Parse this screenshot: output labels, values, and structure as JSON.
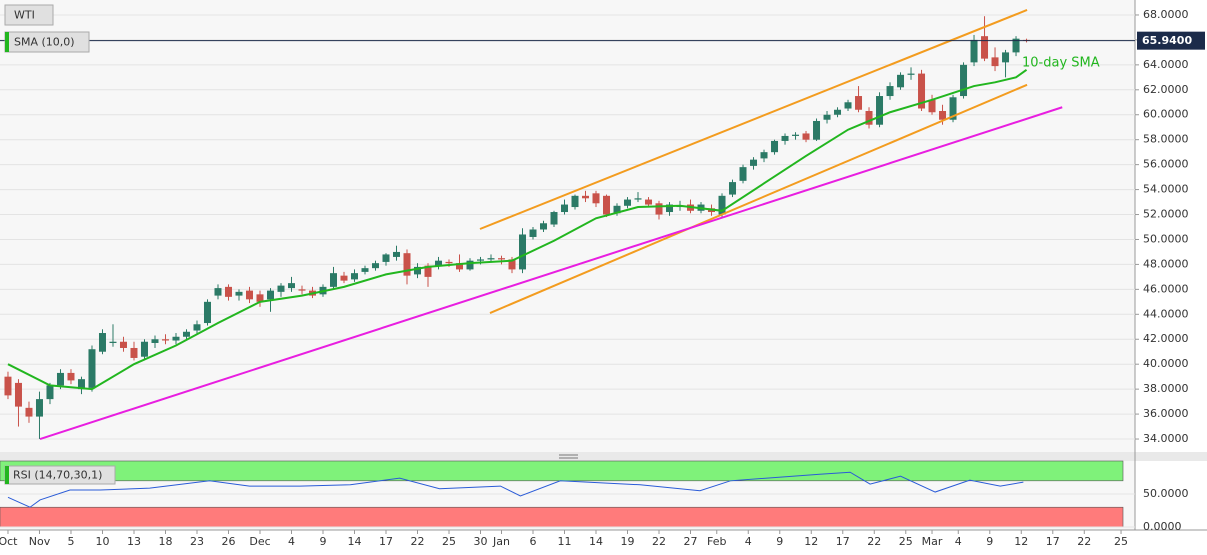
{
  "chart_data": {
    "type": "candlestick",
    "title": "WTI",
    "indicator_label": "SMA (10,0)",
    "annotation": "10-day SMA",
    "up_color": "#2b7a66",
    "down_color": "#c9524a",
    "xlim": [
      -0.76,
      107.33
    ],
    "xticks": [
      {
        "value": 0,
        "label": "Oct"
      },
      {
        "value": 3,
        "label": "Nov"
      },
      {
        "value": 6,
        "label": "5"
      },
      {
        "value": 9,
        "label": "10"
      },
      {
        "value": 12,
        "label": "13"
      },
      {
        "value": 15,
        "label": "18"
      },
      {
        "value": 18,
        "label": "23"
      },
      {
        "value": 21,
        "label": "26"
      },
      {
        "value": 24,
        "label": "Dec"
      },
      {
        "value": 27,
        "label": "4"
      },
      {
        "value": 30,
        "label": "9"
      },
      {
        "value": 33,
        "label": "14"
      },
      {
        "value": 36,
        "label": "17"
      },
      {
        "value": 39,
        "label": "22"
      },
      {
        "value": 42,
        "label": "25"
      },
      {
        "value": 45,
        "label": "30"
      },
      {
        "value": 47,
        "label": "Jan"
      },
      {
        "value": 50,
        "label": "6"
      },
      {
        "value": 53,
        "label": "11"
      },
      {
        "value": 56,
        "label": "14"
      },
      {
        "value": 59,
        "label": "19"
      },
      {
        "value": 62,
        "label": "22"
      },
      {
        "value": 65,
        "label": "27"
      },
      {
        "value": 67.5,
        "label": "Feb"
      },
      {
        "value": 70.5,
        "label": "4"
      },
      {
        "value": 73.5,
        "label": "9"
      },
      {
        "value": 76.5,
        "label": "12"
      },
      {
        "value": 79.5,
        "label": "17"
      },
      {
        "value": 82.5,
        "label": "22"
      },
      {
        "value": 85.5,
        "label": "25"
      },
      {
        "value": 88,
        "label": "Mar"
      },
      {
        "value": 90.5,
        "label": "4"
      },
      {
        "value": 93.5,
        "label": "9"
      },
      {
        "value": 96.5,
        "label": "12"
      },
      {
        "value": 99.5,
        "label": "17"
      },
      {
        "value": 102.5,
        "label": "22"
      },
      {
        "value": 106,
        "label": "25"
      }
    ],
    "ylim": [
      32.96,
      69.2
    ],
    "yticks": [
      {
        "value": 34,
        "label": "34.0000"
      },
      {
        "value": 36,
        "label": "36.0000"
      },
      {
        "value": 38,
        "label": "38.0000"
      },
      {
        "value": 40,
        "label": "40.0000"
      },
      {
        "value": 42,
        "label": "42.0000"
      },
      {
        "value": 44,
        "label": "44.0000"
      },
      {
        "value": 46,
        "label": "46.0000"
      },
      {
        "value": 48,
        "label": "48.0000"
      },
      {
        "value": 50,
        "label": "50.0000"
      },
      {
        "value": 52,
        "label": "52.0000"
      },
      {
        "value": 54,
        "label": "54.0000"
      },
      {
        "value": 56,
        "label": "56.0000"
      },
      {
        "value": 58,
        "label": "58.0000"
      },
      {
        "value": 60,
        "label": "60.0000"
      },
      {
        "value": 62,
        "label": "62.0000"
      },
      {
        "value": 64,
        "label": "64.0000"
      },
      {
        "value": 66,
        "label": "66.0000"
      },
      {
        "value": 68,
        "label": "68.0000"
      }
    ],
    "grid": true,
    "last_price": {
      "value": 65.94,
      "label": "65.9400"
    },
    "candles": [
      [
        39.0,
        39.4,
        37.2,
        37.5
      ],
      [
        38.5,
        38.8,
        35.0,
        36.6
      ],
      [
        36.5,
        37.0,
        35.3,
        35.8
      ],
      [
        35.8,
        37.8,
        34.0,
        37.2
      ],
      [
        37.2,
        38.5,
        36.8,
        38.3
      ],
      [
        38.3,
        39.6,
        38.0,
        39.3
      ],
      [
        39.3,
        39.6,
        38.4,
        38.7
      ],
      [
        38.0,
        39.0,
        37.6,
        38.8
      ],
      [
        38.1,
        41.5,
        37.8,
        41.2
      ],
      [
        41.0,
        42.8,
        40.8,
        42.5
      ],
      [
        41.7,
        43.2,
        41.4,
        41.8
      ],
      [
        41.8,
        42.2,
        41.0,
        41.3
      ],
      [
        41.3,
        41.8,
        40.3,
        40.5
      ],
      [
        40.6,
        42.0,
        40.4,
        41.8
      ],
      [
        41.7,
        42.3,
        41.3,
        42.0
      ],
      [
        42.0,
        42.4,
        41.6,
        41.9
      ],
      [
        41.9,
        42.5,
        41.6,
        42.2
      ],
      [
        42.2,
        42.8,
        41.9,
        42.6
      ],
      [
        42.7,
        43.5,
        42.4,
        43.2
      ],
      [
        43.3,
        45.2,
        43.1,
        45.0
      ],
      [
        45.5,
        46.4,
        45.2,
        46.1
      ],
      [
        46.2,
        46.4,
        45.1,
        45.4
      ],
      [
        45.5,
        46.0,
        45.1,
        45.8
      ],
      [
        45.9,
        46.2,
        44.9,
        45.2
      ],
      [
        45.6,
        45.9,
        44.6,
        45.0
      ],
      [
        45.2,
        46.1,
        44.2,
        45.9
      ],
      [
        45.8,
        46.5,
        45.4,
        46.3
      ],
      [
        46.1,
        47.0,
        45.8,
        46.5
      ],
      [
        46.0,
        46.3,
        45.6,
        45.9
      ],
      [
        45.9,
        46.2,
        45.3,
        45.5
      ],
      [
        45.6,
        46.4,
        45.4,
        46.2
      ],
      [
        46.2,
        47.8,
        46.0,
        47.3
      ],
      [
        47.1,
        47.4,
        46.5,
        46.7
      ],
      [
        46.8,
        47.6,
        46.6,
        47.3
      ],
      [
        47.4,
        47.9,
        47.2,
        47.7
      ],
      [
        47.7,
        48.3,
        47.5,
        48.1
      ],
      [
        48.2,
        48.9,
        47.9,
        48.8
      ],
      [
        48.6,
        49.5,
        48.3,
        49.0
      ],
      [
        48.9,
        49.2,
        46.4,
        47.1
      ],
      [
        47.2,
        48.1,
        46.9,
        47.8
      ],
      [
        47.9,
        48.1,
        46.2,
        47.0
      ],
      [
        47.9,
        48.6,
        47.6,
        48.3
      ],
      [
        48.2,
        48.4,
        47.8,
        48.1
      ],
      [
        48.1,
        48.8,
        47.4,
        47.6
      ],
      [
        47.6,
        48.5,
        47.5,
        48.3
      ],
      [
        48.3,
        48.6,
        48.0,
        48.4
      ],
      [
        48.4,
        48.8,
        48.2,
        48.5
      ],
      [
        48.5,
        48.7,
        48.0,
        48.4
      ],
      [
        48.4,
        48.6,
        47.3,
        47.6
      ],
      [
        47.6,
        50.9,
        47.3,
        50.4
      ],
      [
        50.2,
        51.0,
        50.0,
        50.8
      ],
      [
        50.8,
        51.5,
        50.6,
        51.3
      ],
      [
        51.2,
        52.3,
        51.0,
        52.2
      ],
      [
        52.2,
        53.2,
        52.0,
        52.8
      ],
      [
        52.6,
        53.6,
        52.4,
        53.5
      ],
      [
        53.5,
        53.9,
        53.0,
        53.3
      ],
      [
        53.7,
        53.9,
        52.6,
        52.9
      ],
      [
        53.5,
        53.6,
        51.8,
        52.0
      ],
      [
        52.1,
        52.9,
        51.9,
        52.7
      ],
      [
        52.7,
        53.4,
        52.5,
        53.2
      ],
      [
        53.2,
        53.8,
        53.0,
        53.3
      ],
      [
        53.2,
        53.4,
        52.6,
        52.8
      ],
      [
        52.9,
        53.1,
        51.6,
        52.0
      ],
      [
        52.2,
        53.0,
        51.9,
        52.8
      ],
      [
        52.6,
        53.1,
        52.3,
        52.7
      ],
      [
        52.8,
        53.2,
        52.1,
        52.3
      ],
      [
        52.3,
        53.0,
        52.1,
        52.8
      ],
      [
        52.5,
        52.8,
        51.9,
        52.2
      ],
      [
        52.0,
        53.7,
        51.8,
        53.5
      ],
      [
        53.6,
        54.8,
        53.4,
        54.6
      ],
      [
        54.7,
        56.0,
        54.5,
        55.8
      ],
      [
        55.9,
        56.6,
        55.6,
        56.4
      ],
      [
        56.5,
        57.2,
        56.2,
        57.0
      ],
      [
        57.0,
        58.0,
        56.8,
        57.9
      ],
      [
        57.9,
        58.5,
        57.6,
        58.3
      ],
      [
        58.3,
        58.6,
        58.0,
        58.4
      ],
      [
        58.5,
        58.7,
        57.8,
        58.0
      ],
      [
        58.0,
        59.7,
        57.9,
        59.5
      ],
      [
        59.6,
        60.3,
        59.3,
        60.0
      ],
      [
        60.0,
        60.6,
        59.8,
        60.4
      ],
      [
        60.5,
        61.2,
        60.3,
        61.0
      ],
      [
        61.5,
        62.3,
        60.2,
        60.4
      ],
      [
        60.3,
        60.6,
        58.9,
        59.2
      ],
      [
        59.2,
        61.8,
        59.0,
        61.5
      ],
      [
        61.5,
        62.6,
        61.2,
        62.3
      ],
      [
        62.2,
        63.4,
        62.0,
        63.2
      ],
      [
        63.2,
        63.8,
        62.8,
        63.3
      ],
      [
        63.3,
        63.6,
        60.3,
        60.5
      ],
      [
        61.2,
        61.6,
        60.0,
        60.2
      ],
      [
        60.3,
        60.8,
        59.2,
        59.6
      ],
      [
        59.6,
        61.6,
        59.4,
        61.4
      ],
      [
        61.5,
        64.2,
        61.3,
        64.0
      ],
      [
        64.2,
        66.4,
        63.9,
        66.0
      ],
      [
        66.3,
        67.9,
        64.3,
        64.5
      ],
      [
        64.6,
        65.4,
        63.5,
        63.9
      ],
      [
        64.2,
        65.2,
        63.0,
        65.0
      ],
      [
        65.0,
        66.3,
        64.7,
        66.1
      ],
      [
        66.0,
        66.1,
        65.8,
        65.94
      ]
    ],
    "series": [
      {
        "name": "SMA (10,0)",
        "color": "#22b61f",
        "x": [
          0,
          4,
          8,
          12,
          16,
          20,
          24,
          28,
          32,
          36,
          40,
          44,
          48,
          52,
          56,
          60,
          64,
          68,
          72,
          76,
          80,
          84,
          88,
          92,
          94,
          96,
          97
        ],
        "values": [
          40.0,
          38.3,
          38.0,
          40.0,
          41.5,
          43.3,
          45.0,
          45.5,
          46.2,
          47.2,
          47.8,
          48.1,
          48.3,
          49.9,
          51.7,
          52.6,
          52.7,
          52.3,
          54.5,
          56.7,
          58.8,
          60.2,
          61.2,
          62.3,
          62.6,
          63.0,
          63.6
        ]
      }
    ],
    "trend_lines": [
      {
        "color": "#f39c1f",
        "x": [
          44.95,
          97.05
        ],
        "values": [
          50.84,
          68.4
        ]
      },
      {
        "color": "#f39c1f",
        "x": [
          45.9,
          97.05
        ],
        "values": [
          44.1,
          62.4
        ]
      },
      {
        "color": "#e81ee0",
        "x": [
          3.05,
          100.4
        ],
        "values": [
          34.0,
          60.6
        ]
      }
    ],
    "rsi": {
      "label": "RSI (14,70,30,1)",
      "color": "#2a5bd7",
      "ylim": [
        -4.5,
        100
      ],
      "yticks": [
        {
          "value": 50,
          "label": "50.0000"
        },
        {
          "value": 0,
          "label": "0.0000"
        }
      ],
      "overbought_band": [
        70,
        100
      ],
      "oversold_band": [
        0,
        30
      ],
      "x": [
        0,
        2.1,
        3.05,
        5.9,
        8.8,
        13.5,
        19.2,
        23,
        27.8,
        32.6,
        37.3,
        41.1,
        46.9,
        48.8,
        52.6,
        60.2,
        65.9,
        68.8,
        77.3,
        80.2,
        82.1,
        85,
        88.3,
        91.6,
        94.5,
        96.7
      ],
      "values": [
        45,
        30,
        41,
        56,
        56,
        59,
        70,
        62,
        62,
        64,
        74,
        58,
        62,
        47,
        70,
        64,
        55,
        70,
        80,
        83,
        65,
        77,
        53,
        71,
        62,
        68
      ]
    }
  }
}
